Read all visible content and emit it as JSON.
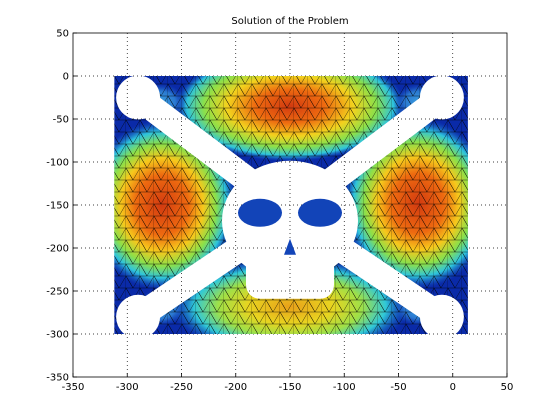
{
  "chart_data": {
    "type": "heatmap",
    "title": "Solution of the Problem",
    "xlabel": "",
    "ylabel": "",
    "xlim": [
      -350,
      50
    ],
    "ylim": [
      -350,
      50
    ],
    "xticks": [
      "-350",
      "-300",
      "-250",
      "-200",
      "-150",
      "-100",
      "-50",
      "0",
      "50"
    ],
    "yticks": [
      "50",
      "0",
      "-50",
      "-100",
      "-150",
      "-200",
      "-250",
      "-300",
      "-350"
    ],
    "grid": true,
    "colormap": "jet",
    "domain": {
      "x_range": [
        -312,
        14
      ],
      "y_range": [
        -300,
        0
      ]
    },
    "hotspots": [
      {
        "name": "left",
        "x": -268,
        "y": -150,
        "value": 1.0
      },
      {
        "name": "right",
        "x": -32,
        "y": -148,
        "value": 1.0
      },
      {
        "name": "top",
        "x": -150,
        "y": -35,
        "value": 0.9
      },
      {
        "name": "bottom",
        "x": -150,
        "y": -268,
        "value": 0.72
      }
    ],
    "colors": {
      "background": "#ffffff",
      "low": "#0a2aa8",
      "high": "#e23a10"
    }
  }
}
